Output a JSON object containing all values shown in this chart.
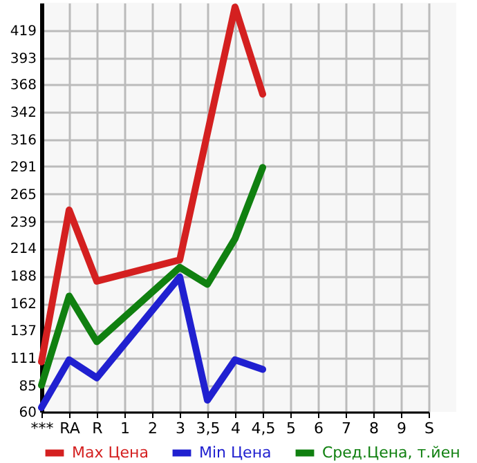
{
  "chart_data": {
    "type": "line",
    "categories": [
      "***",
      "RA",
      "R",
      "1",
      "2",
      "3",
      "3,5",
      "4",
      "4,5",
      "5",
      "6",
      "7",
      "8",
      "9",
      "S"
    ],
    "series": [
      {
        "name": "Max Цена",
        "color": "#d42020",
        "values": [
          107,
          250,
          183,
          null,
          null,
          203,
          null,
          441,
          359,
          null,
          null,
          null,
          null,
          null,
          null
        ]
      },
      {
        "name": "Min Цена",
        "color": "#2020d0",
        "values": [
          64,
          109,
          92,
          null,
          null,
          187,
          71,
          109,
          100,
          null,
          null,
          null,
          null,
          null,
          null
        ]
      },
      {
        "name": "Сред.Цена, т.йен",
        "color": "#108010",
        "values": [
          85,
          169,
          126,
          null,
          null,
          196,
          180,
          223,
          290,
          null,
          null,
          null,
          null,
          null,
          null
        ]
      }
    ],
    "ylim": [
      60,
      445
    ],
    "yticks": [
      60,
      85,
      111,
      137,
      162,
      188,
      214,
      239,
      265,
      291,
      316,
      342,
      368,
      393,
      419
    ],
    "grid": true,
    "legend": "bottom",
    "marker": "none",
    "line_style": "solid"
  }
}
